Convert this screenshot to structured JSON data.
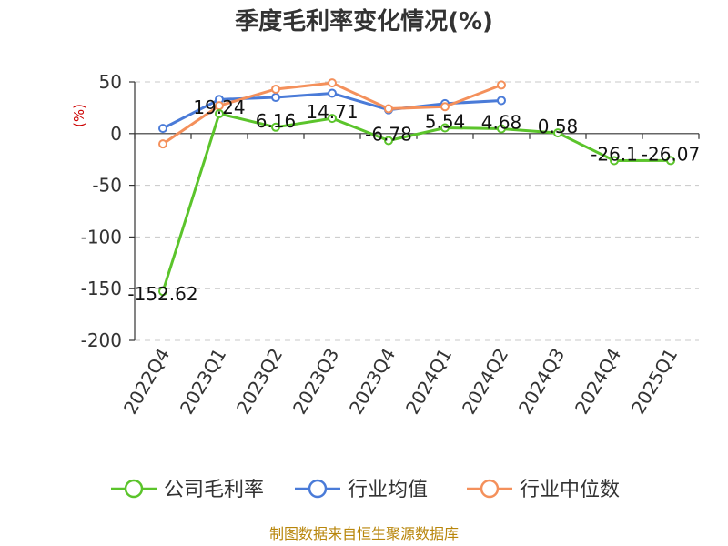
{
  "chart_data": {
    "type": "line",
    "title": "季度毛利率变化情况(%)",
    "y_unit": "(%)",
    "ylim": [
      -200,
      50
    ],
    "yticks": [
      50,
      0,
      -50,
      -100,
      -150,
      -200
    ],
    "grid": true,
    "legend_position": "bottom",
    "categories": [
      "2022Q4",
      "2023Q1",
      "2023Q2",
      "2023Q3",
      "2023Q4",
      "2024Q1",
      "2024Q2",
      "2024Q3",
      "2024Q4",
      "2025Q1"
    ],
    "series": [
      {
        "name": "公司毛利率",
        "color": "#5bc42b",
        "values": [
          -152.62,
          19.24,
          6.16,
          14.71,
          -6.78,
          5.54,
          4.68,
          0.58,
          -26.1,
          -26.07
        ],
        "labels": [
          "-152.62",
          "19.24",
          "6.16",
          "14.71",
          "-6.78",
          "5.54",
          "4.68",
          "0.58",
          "-26.1",
          "-26.07"
        ]
      },
      {
        "name": "行业均值",
        "color": "#4a7bd8",
        "values": [
          5,
          33,
          35,
          39,
          23,
          29,
          32,
          null,
          null,
          null
        ]
      },
      {
        "name": "行业中位数",
        "color": "#f4905b",
        "values": [
          -10,
          27,
          43,
          49,
          24,
          26,
          47,
          null,
          null,
          null
        ]
      }
    ],
    "source": "制图数据来自恒生聚源数据库"
  }
}
